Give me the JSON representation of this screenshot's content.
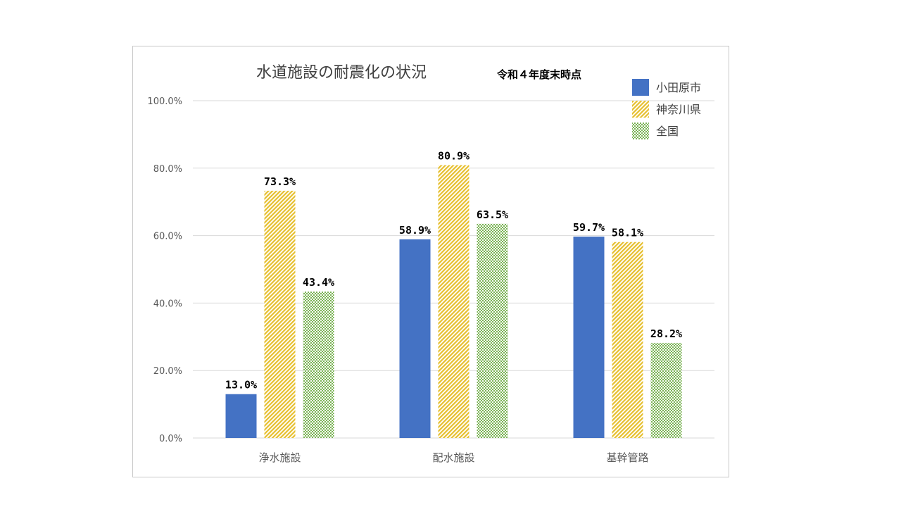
{
  "chart_data": {
    "type": "bar",
    "title": "水道施設の耐震化の状況",
    "subtitle": "令和４年度末時点",
    "categories": [
      "浄水施設",
      "配水施設",
      "基幹管路"
    ],
    "series": [
      {
        "name": "小田原市",
        "values": [
          13.0,
          58.9,
          59.7
        ],
        "labels": [
          "13.0%",
          "58.9%",
          "59.7%"
        ],
        "color": "#4472c4",
        "pattern": "solid"
      },
      {
        "name": "神奈川県",
        "values": [
          73.3,
          80.9,
          58.1
        ],
        "labels": [
          "73.3%",
          "80.9%",
          "58.1%"
        ],
        "color": "#ffd24a",
        "pattern": "diagonal-stripes"
      },
      {
        "name": "全国",
        "values": [
          43.4,
          63.5,
          28.2
        ],
        "labels": [
          "43.4%",
          "63.5%",
          "28.2%"
        ],
        "color": "#70ad47",
        "pattern": "dots"
      }
    ],
    "ylim": [
      0,
      100
    ],
    "yticks": [
      0,
      20,
      40,
      60,
      80,
      100
    ],
    "ytick_labels": [
      "0.0%",
      "20.0%",
      "40.0%",
      "60.0%",
      "80.0%",
      "100.0%"
    ],
    "grid": true,
    "legend_position": "top-right"
  }
}
